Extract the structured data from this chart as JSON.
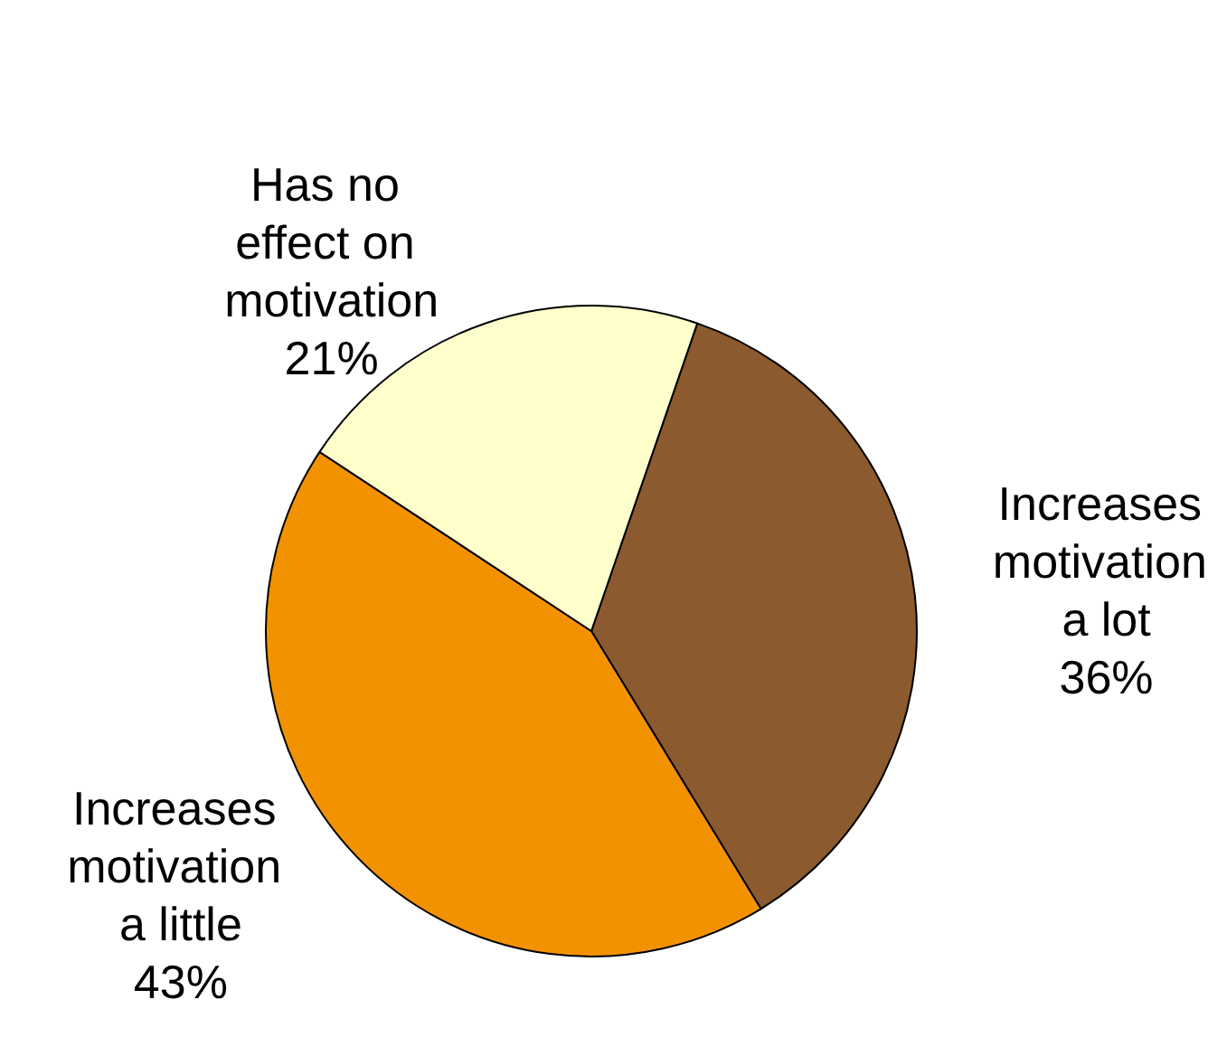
{
  "chart_data": {
    "type": "pie",
    "categories": [
      "Increases motivation a lot",
      "Increases motivation a little",
      "Has no effect on motivation"
    ],
    "values": [
      36,
      43,
      21
    ],
    "value_labels": [
      "36%",
      "43%",
      "21%"
    ],
    "colors": [
      "#8b5a2e",
      "#f39200",
      "#ffffcc"
    ],
    "legend": false
  }
}
